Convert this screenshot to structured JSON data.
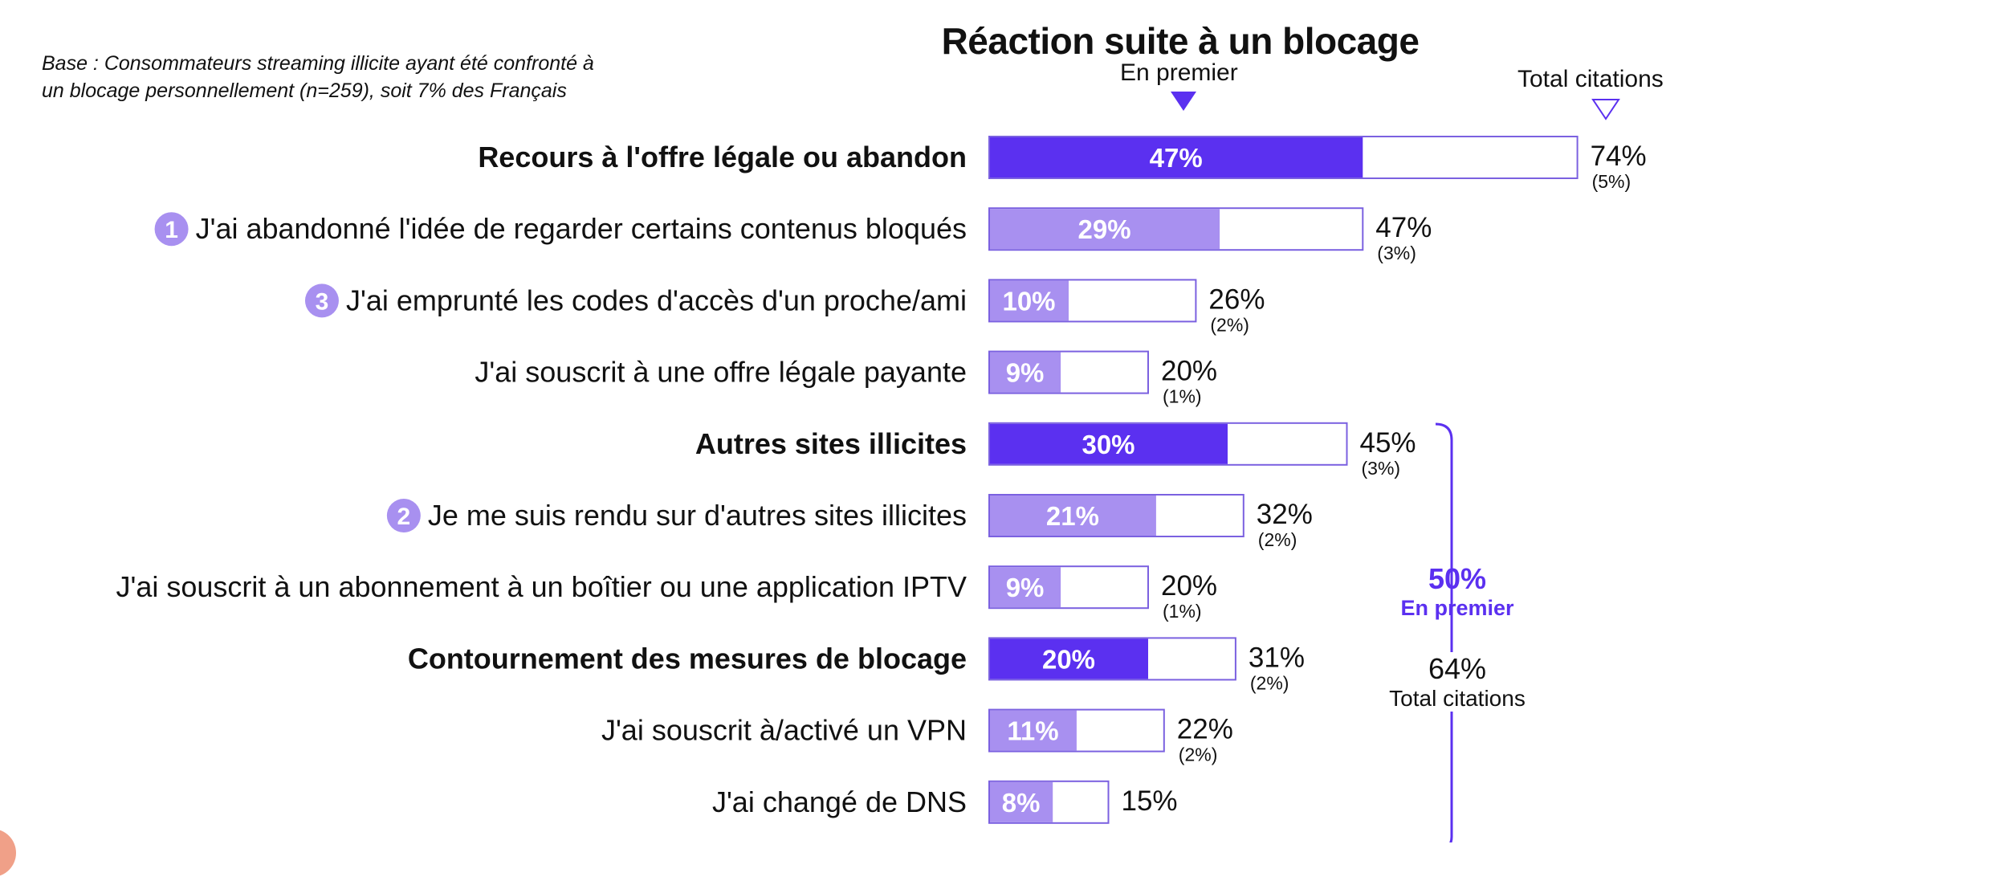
{
  "base_note": {
    "line1": "Base : Consommateurs streaming illicite ayant été confronté à",
    "line2": "un blocage personnellement (n=259), soit 7% des Français"
  },
  "legend": {
    "first": "En premier",
    "total": "Total citations"
  },
  "bracket": {
    "first_value": "50%",
    "first_label": "En premier",
    "total_value": "64%",
    "total_label": "Total citations"
  },
  "colors": {
    "category_fill": "#5b30f0",
    "item_fill": "#a890f0",
    "outline": "#7b61e0",
    "accent_text": "#5b30f0"
  },
  "chart_data": {
    "type": "bar",
    "orientation": "horizontal",
    "title": "Réaction suite à  un blocage",
    "series": [
      {
        "name": "En premier",
        "values": [
          47,
          29,
          10,
          9,
          30,
          21,
          9,
          20,
          11,
          8
        ]
      },
      {
        "name": "Total citations",
        "values": [
          74,
          47,
          26,
          20,
          45,
          32,
          20,
          31,
          22,
          15
        ]
      }
    ],
    "rows": [
      {
        "label": "Recours à l'offre légale ou abandon",
        "kind": "category",
        "first": 47,
        "first_label": "47%",
        "total": 74,
        "total_label": "74%",
        "sub": "(5%)"
      },
      {
        "label": "J'ai abandonné l'idée de regarder certains contenus bloqués",
        "kind": "item",
        "rank": "1",
        "first": 29,
        "first_label": "29%",
        "total": 47,
        "total_label": "47%",
        "sub": "(3%)"
      },
      {
        "label": "J'ai emprunté les codes d'accès d'un proche/ami",
        "kind": "item",
        "rank": "3",
        "first": 10,
        "first_label": "10%",
        "total": 26,
        "total_label": "26%",
        "sub": "(2%)"
      },
      {
        "label": "J'ai souscrit à une offre légale payante",
        "kind": "item",
        "rank": "",
        "first": 9,
        "first_label": "9%",
        "total": 20,
        "total_label": "20%",
        "sub": "(1%)"
      },
      {
        "label": "Autres sites illicites",
        "kind": "category",
        "first": 30,
        "first_label": "30%",
        "total": 45,
        "total_label": "45%",
        "sub": "(3%)"
      },
      {
        "label": "Je me suis rendu sur d'autres sites illicites",
        "kind": "item",
        "rank": "2",
        "first": 21,
        "first_label": "21%",
        "total": 32,
        "total_label": "32%",
        "sub": "(2%)"
      },
      {
        "label": "J'ai souscrit à un abonnement à un boîtier ou une application IPTV",
        "kind": "item",
        "rank": "",
        "first": 9,
        "first_label": "9%",
        "total": 20,
        "total_label": "20%",
        "sub": "(1%)"
      },
      {
        "label": "Contournement des mesures de blocage",
        "kind": "category",
        "first": 20,
        "first_label": "20%",
        "total": 31,
        "total_label": "31%",
        "sub": "(2%)"
      },
      {
        "label": "J'ai souscrit à/activé un VPN",
        "kind": "item",
        "rank": "",
        "first": 11,
        "first_label": "11%",
        "total": 22,
        "total_label": "22%",
        "sub": "(2%)"
      },
      {
        "label": "J'ai changé de DNS",
        "kind": "item",
        "rank": "",
        "first": 8,
        "first_label": "8%",
        "total": 15,
        "total_label": "15%",
        "sub": ""
      }
    ],
    "xlim": [
      0,
      100
    ],
    "grid": false
  }
}
